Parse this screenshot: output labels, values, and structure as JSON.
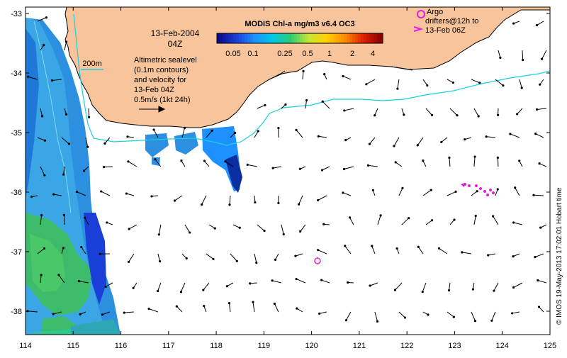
{
  "map": {
    "colorbar_title": "MODIS Chl-a mg/m3 v6.4 OC3",
    "colorbar_ticks": [
      "0.05",
      "0.1",
      "0.25",
      "0.5",
      "1",
      "2",
      "4"
    ],
    "colorbar_colors": [
      "#0a0a8a",
      "#1a3fd6",
      "#1e90ff",
      "#00c8e6",
      "#2ecc71",
      "#c8e632",
      "#ffd000",
      "#ff8a00",
      "#e02000",
      "#8a0000"
    ],
    "date_line1": "13-Feb-2004",
    "date_line2": "04Z",
    "isobath_label": "200m",
    "description_lines": [
      "Altimetric sealevel",
      "(0.1m contours)",
      "and velocity for",
      "13-Feb 04Z",
      "0.5m/s (1kt 24h)"
    ],
    "argo_lines": [
      "Argo",
      "drifters@12h to",
      "13-Feb 06Z"
    ],
    "y_ticks": [
      "-33",
      "-34",
      "-35",
      "-36",
      "-37",
      "-38"
    ],
    "x_ticks": [
      "114",
      "115",
      "116",
      "117",
      "118",
      "119",
      "120",
      "121",
      "122",
      "123",
      "124",
      "125"
    ],
    "credit": "© IMOS 19-May-2013 17:02:01 Hobart time",
    "colors": {
      "land": "#f7c49b",
      "isobath": "#19d0e0",
      "argo": "#e020e0",
      "arrow": "#000000"
    }
  }
}
